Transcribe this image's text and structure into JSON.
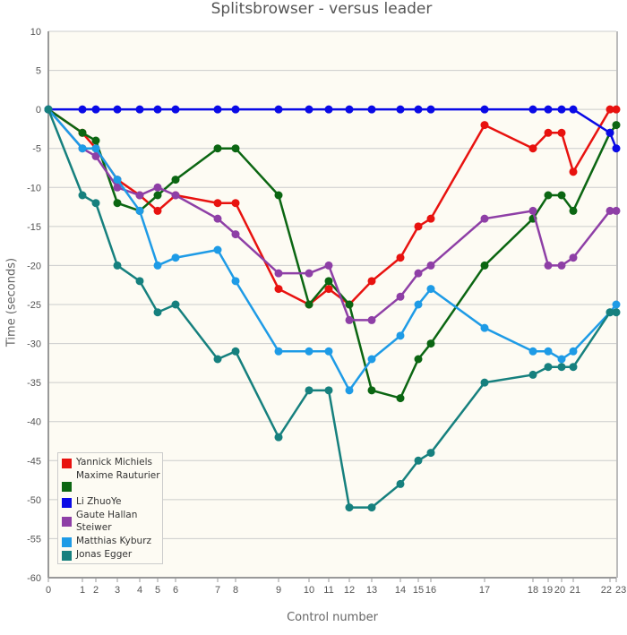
{
  "chart_data": {
    "type": "line",
    "title": "Splitsbrowser - versus leader",
    "xlabel": "Control number",
    "ylabel": "Time (seconds)",
    "ylim": [
      -60,
      10
    ],
    "yticks": [
      10,
      5,
      0,
      -5,
      -10,
      -15,
      -20,
      -25,
      -30,
      -35,
      -40,
      -45,
      -50,
      -55,
      -60
    ],
    "x_tick_labels": [
      "0",
      "1",
      "2",
      "3",
      "4",
      "5",
      "6",
      "7",
      "8",
      "9",
      "10",
      "11",
      "12",
      "13",
      "14",
      "15",
      "16",
      "17",
      "18",
      "19",
      "20",
      "21",
      "22",
      "23"
    ],
    "grid": true,
    "legend_position": "bottom-left",
    "background": "#fdfbf3",
    "series": [
      {
        "name": "Yannick Michiels",
        "color": "#e8120f",
        "values": [
          0,
          -3,
          -5,
          -9,
          -11,
          -13,
          -11,
          -12,
          -12,
          -23,
          -25,
          -23,
          -25,
          -22,
          -19,
          -15,
          -14,
          -2,
          -5,
          -3,
          -3,
          -8,
          0,
          0
        ]
      },
      {
        "name": "Maxime Rauturier",
        "color": "#0b6612",
        "values": [
          0,
          -3,
          -4,
          -12,
          -13,
          -11,
          -9,
          -5,
          -5,
          -11,
          -25,
          -22,
          -25,
          -36,
          -37,
          -32,
          -30,
          -20,
          -14,
          -11,
          -11,
          -13,
          -3,
          -2
        ]
      },
      {
        "name": "Li ZhuoYe",
        "color": "#0a0ae6",
        "values": [
          0,
          0,
          0,
          0,
          0,
          0,
          0,
          0,
          0,
          0,
          0,
          0,
          0,
          0,
          0,
          0,
          0,
          0,
          0,
          0,
          0,
          0,
          -3,
          -5
        ]
      },
      {
        "name": "Gaute Hallan Steiwer",
        "color": "#8e3fa6",
        "values": [
          0,
          -5,
          -6,
          -10,
          -11,
          -10,
          -11,
          -14,
          -16,
          -21,
          -21,
          -20,
          -27,
          -27,
          -24,
          -21,
          -20,
          -14,
          -13,
          -20,
          -20,
          -19,
          -13,
          -13
        ]
      },
      {
        "name": "Matthias Kyburz",
        "color": "#1e9be6",
        "values": [
          0,
          -5,
          -5,
          -9,
          -13,
          -20,
          -19,
          -18,
          -22,
          -31,
          -31,
          -31,
          -36,
          -32,
          -29,
          -25,
          -23,
          -28,
          -31,
          -31,
          -32,
          -31,
          -26,
          -25
        ]
      },
      {
        "name": "Jonas Egger",
        "color": "#16807e",
        "values": [
          0,
          -11,
          -12,
          -20,
          -22,
          -26,
          -25,
          -32,
          -31,
          -42,
          -36,
          -36,
          -51,
          -51,
          -48,
          -45,
          -44,
          -35,
          -34,
          -33,
          -33,
          -33,
          -26,
          -26
        ]
      }
    ]
  }
}
